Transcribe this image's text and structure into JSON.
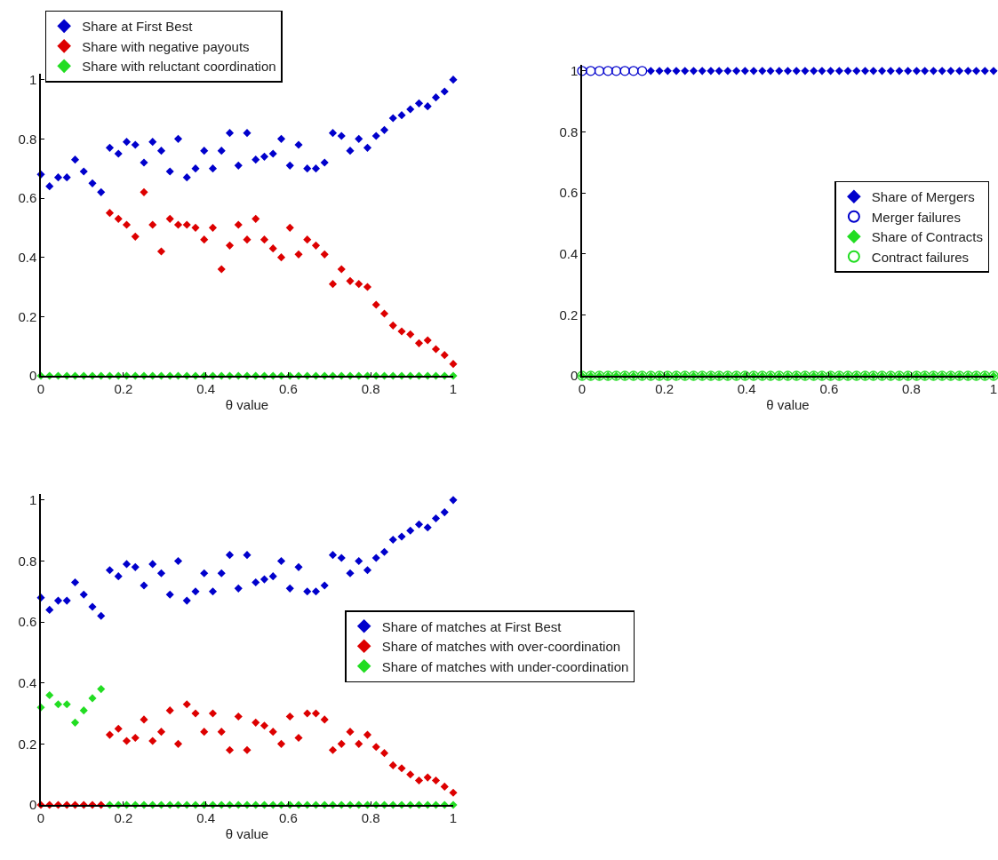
{
  "chart_data": [
    {
      "type": "scatter",
      "xlabel": "θ value",
      "marker": "diamond",
      "grid": false,
      "legend": "top left",
      "xlim": [
        0,
        1
      ],
      "ylim": [
        0,
        1.02
      ],
      "xticks": [
        0,
        0.2,
        0.4,
        0.6,
        0.8,
        1
      ],
      "yticks": [
        0,
        0.2,
        0.4,
        0.6,
        0.8,
        1
      ],
      "x": [
        0,
        0.021,
        0.042,
        0.063,
        0.083,
        0.104,
        0.125,
        0.146,
        0.167,
        0.188,
        0.208,
        0.229,
        0.25,
        0.271,
        0.292,
        0.313,
        0.333,
        0.354,
        0.375,
        0.396,
        0.417,
        0.438,
        0.458,
        0.479,
        0.5,
        0.521,
        0.542,
        0.563,
        0.583,
        0.604,
        0.625,
        0.646,
        0.667,
        0.688,
        0.708,
        0.729,
        0.75,
        0.771,
        0.792,
        0.813,
        0.833,
        0.854,
        0.875,
        0.896,
        0.917,
        0.938,
        0.958,
        0.979,
        1
      ],
      "series": [
        {
          "name": "Share at First Best",
          "color": "#0000cc",
          "values": [
            0.68,
            0.64,
            0.67,
            0.67,
            0.73,
            0.69,
            0.65,
            0.62,
            0.77,
            0.75,
            0.79,
            0.78,
            0.72,
            0.79,
            0.76,
            0.69,
            0.8,
            0.67,
            0.7,
            0.76,
            0.7,
            0.76,
            0.82,
            0.71,
            0.82,
            0.73,
            0.74,
            0.75,
            0.8,
            0.71,
            0.78,
            0.7,
            0.7,
            0.72,
            0.82,
            0.81,
            0.76,
            0.8,
            0.77,
            0.81,
            0.83,
            0.87,
            0.88,
            0.9,
            0.92,
            0.91,
            0.94,
            0.96,
            1.0
          ]
        },
        {
          "name": "Share with negative payouts",
          "color": "#dd0000",
          "values": [
            null,
            null,
            null,
            null,
            null,
            null,
            null,
            null,
            0.55,
            0.53,
            0.51,
            0.47,
            0.62,
            0.51,
            0.42,
            0.53,
            0.51,
            0.51,
            0.5,
            0.46,
            0.5,
            0.36,
            0.44,
            0.51,
            0.46,
            0.53,
            0.46,
            0.43,
            0.4,
            0.5,
            0.41,
            0.46,
            0.44,
            0.41,
            0.31,
            0.36,
            0.32,
            0.31,
            0.3,
            0.24,
            0.21,
            0.17,
            0.15,
            0.14,
            0.11,
            0.12,
            0.09,
            0.07,
            0.04
          ]
        },
        {
          "name": "Share with reluctant coordination",
          "color": "#22dd22",
          "values": [
            0,
            0,
            0,
            0,
            0,
            0,
            0,
            0,
            0,
            0,
            0,
            0,
            0,
            0,
            0,
            0,
            0,
            0,
            0,
            0,
            0,
            0,
            0,
            0,
            0,
            0,
            0,
            0,
            0,
            0,
            0,
            0,
            0,
            0,
            0,
            0,
            0,
            0,
            0,
            0,
            0,
            0,
            0,
            0,
            0,
            0,
            0,
            0,
            0
          ]
        }
      ]
    },
    {
      "type": "scatter",
      "xlabel": "θ value",
      "grid": false,
      "legend": "center right",
      "xlim": [
        0,
        1
      ],
      "ylim": [
        0,
        1.02
      ],
      "xticks": [
        0,
        0.2,
        0.4,
        0.6,
        0.8,
        1
      ],
      "yticks": [
        0,
        0.2,
        0.4,
        0.6,
        0.8,
        1
      ],
      "x": [
        0,
        0.021,
        0.042,
        0.063,
        0.083,
        0.104,
        0.125,
        0.146,
        0.167,
        0.188,
        0.208,
        0.229,
        0.25,
        0.271,
        0.292,
        0.313,
        0.333,
        0.354,
        0.375,
        0.396,
        0.417,
        0.438,
        0.458,
        0.479,
        0.5,
        0.521,
        0.542,
        0.563,
        0.583,
        0.604,
        0.625,
        0.646,
        0.667,
        0.688,
        0.708,
        0.729,
        0.75,
        0.771,
        0.792,
        0.813,
        0.833,
        0.854,
        0.875,
        0.896,
        0.917,
        0.938,
        0.958,
        0.979,
        1
      ],
      "series": [
        {
          "name": "Share of Mergers",
          "color": "#0000cc",
          "marker": "diamond",
          "values": [
            null,
            null,
            null,
            null,
            null,
            null,
            null,
            null,
            1,
            1,
            1,
            1,
            1,
            1,
            1,
            1,
            1,
            1,
            1,
            1,
            1,
            1,
            1,
            1,
            1,
            1,
            1,
            1,
            1,
            1,
            1,
            1,
            1,
            1,
            1,
            1,
            1,
            1,
            1,
            1,
            1,
            1,
            1,
            1,
            1,
            1,
            1,
            1,
            1
          ]
        },
        {
          "name": "Merger failures",
          "color": "#0000cc",
          "marker": "circle",
          "values": [
            1,
            1,
            1,
            1,
            1,
            1,
            1,
            1,
            null,
            null,
            null,
            null,
            null,
            null,
            null,
            null,
            null,
            null,
            null,
            null,
            null,
            null,
            null,
            null,
            null,
            null,
            null,
            null,
            null,
            null,
            null,
            null,
            null,
            null,
            null,
            null,
            null,
            null,
            null,
            null,
            null,
            null,
            null,
            null,
            null,
            null,
            null,
            null,
            null
          ]
        },
        {
          "name": "Share of Contracts",
          "color": "#22dd22",
          "marker": "diamond",
          "values": [
            0,
            0,
            0,
            0,
            0,
            0,
            0,
            0,
            0,
            0,
            0,
            0,
            0,
            0,
            0,
            0,
            0,
            0,
            0,
            0,
            0,
            0,
            0,
            0,
            0,
            0,
            0,
            0,
            0,
            0,
            0,
            0,
            0,
            0,
            0,
            0,
            0,
            0,
            0,
            0,
            0,
            0,
            0,
            0,
            0,
            0,
            0,
            0,
            0
          ]
        },
        {
          "name": "Contract failures",
          "color": "#22dd22",
          "marker": "circle",
          "values": [
            0,
            0,
            0,
            0,
            0,
            0,
            0,
            0,
            0,
            0,
            0,
            0,
            0,
            0,
            0,
            0,
            0,
            0,
            0,
            0,
            0,
            0,
            0,
            0,
            0,
            0,
            0,
            0,
            0,
            0,
            0,
            0,
            0,
            0,
            0,
            0,
            0,
            0,
            0,
            0,
            0,
            0,
            0,
            0,
            0,
            0,
            0,
            0,
            0
          ]
        }
      ]
    },
    {
      "type": "scatter",
      "xlabel": "θ value",
      "marker": "diamond",
      "grid": false,
      "legend": "right",
      "xlim": [
        0,
        1
      ],
      "ylim": [
        0,
        1.02
      ],
      "xticks": [
        0,
        0.2,
        0.4,
        0.6,
        0.8,
        1
      ],
      "yticks": [
        0,
        0.2,
        0.4,
        0.6,
        0.8,
        1
      ],
      "x": [
        0,
        0.021,
        0.042,
        0.063,
        0.083,
        0.104,
        0.125,
        0.146,
        0.167,
        0.188,
        0.208,
        0.229,
        0.25,
        0.271,
        0.292,
        0.313,
        0.333,
        0.354,
        0.375,
        0.396,
        0.417,
        0.438,
        0.458,
        0.479,
        0.5,
        0.521,
        0.542,
        0.563,
        0.583,
        0.604,
        0.625,
        0.646,
        0.667,
        0.688,
        0.708,
        0.729,
        0.75,
        0.771,
        0.792,
        0.813,
        0.833,
        0.854,
        0.875,
        0.896,
        0.917,
        0.938,
        0.958,
        0.979,
        1
      ],
      "series": [
        {
          "name": "Share of matches at First Best",
          "color": "#0000cc",
          "values": [
            0.68,
            0.64,
            0.67,
            0.67,
            0.73,
            0.69,
            0.65,
            0.62,
            0.77,
            0.75,
            0.79,
            0.78,
            0.72,
            0.79,
            0.76,
            0.69,
            0.8,
            0.67,
            0.7,
            0.76,
            0.7,
            0.76,
            0.82,
            0.71,
            0.82,
            0.73,
            0.74,
            0.75,
            0.8,
            0.71,
            0.78,
            0.7,
            0.7,
            0.72,
            0.82,
            0.81,
            0.76,
            0.8,
            0.77,
            0.81,
            0.83,
            0.87,
            0.88,
            0.9,
            0.92,
            0.91,
            0.94,
            0.96,
            1.0
          ]
        },
        {
          "name": "Share of matches with over-coordination",
          "color": "#dd0000",
          "values": [
            0,
            0,
            0,
            0,
            0,
            0,
            0,
            0,
            0.23,
            0.25,
            0.21,
            0.22,
            0.28,
            0.21,
            0.24,
            0.31,
            0.2,
            0.33,
            0.3,
            0.24,
            0.3,
            0.24,
            0.18,
            0.29,
            0.18,
            0.27,
            0.26,
            0.24,
            0.2,
            0.29,
            0.22,
            0.3,
            0.3,
            0.28,
            0.18,
            0.2,
            0.24,
            0.2,
            0.23,
            0.19,
            0.17,
            0.13,
            0.12,
            0.1,
            0.08,
            0.09,
            0.08,
            0.06,
            0.04
          ]
        },
        {
          "name": "Share of matches with under-coordination",
          "color": "#22dd22",
          "values": [
            0.32,
            0.36,
            0.33,
            0.33,
            0.27,
            0.31,
            0.35,
            0.38,
            0,
            0,
            0,
            0,
            0,
            0,
            0,
            0,
            0,
            0,
            0,
            0,
            0,
            0,
            0,
            0,
            0,
            0,
            0,
            0,
            0,
            0,
            0,
            0,
            0,
            0,
            0,
            0,
            0,
            0,
            0,
            0,
            0,
            0,
            0,
            0,
            0,
            0,
            0,
            0,
            0
          ]
        }
      ]
    }
  ]
}
